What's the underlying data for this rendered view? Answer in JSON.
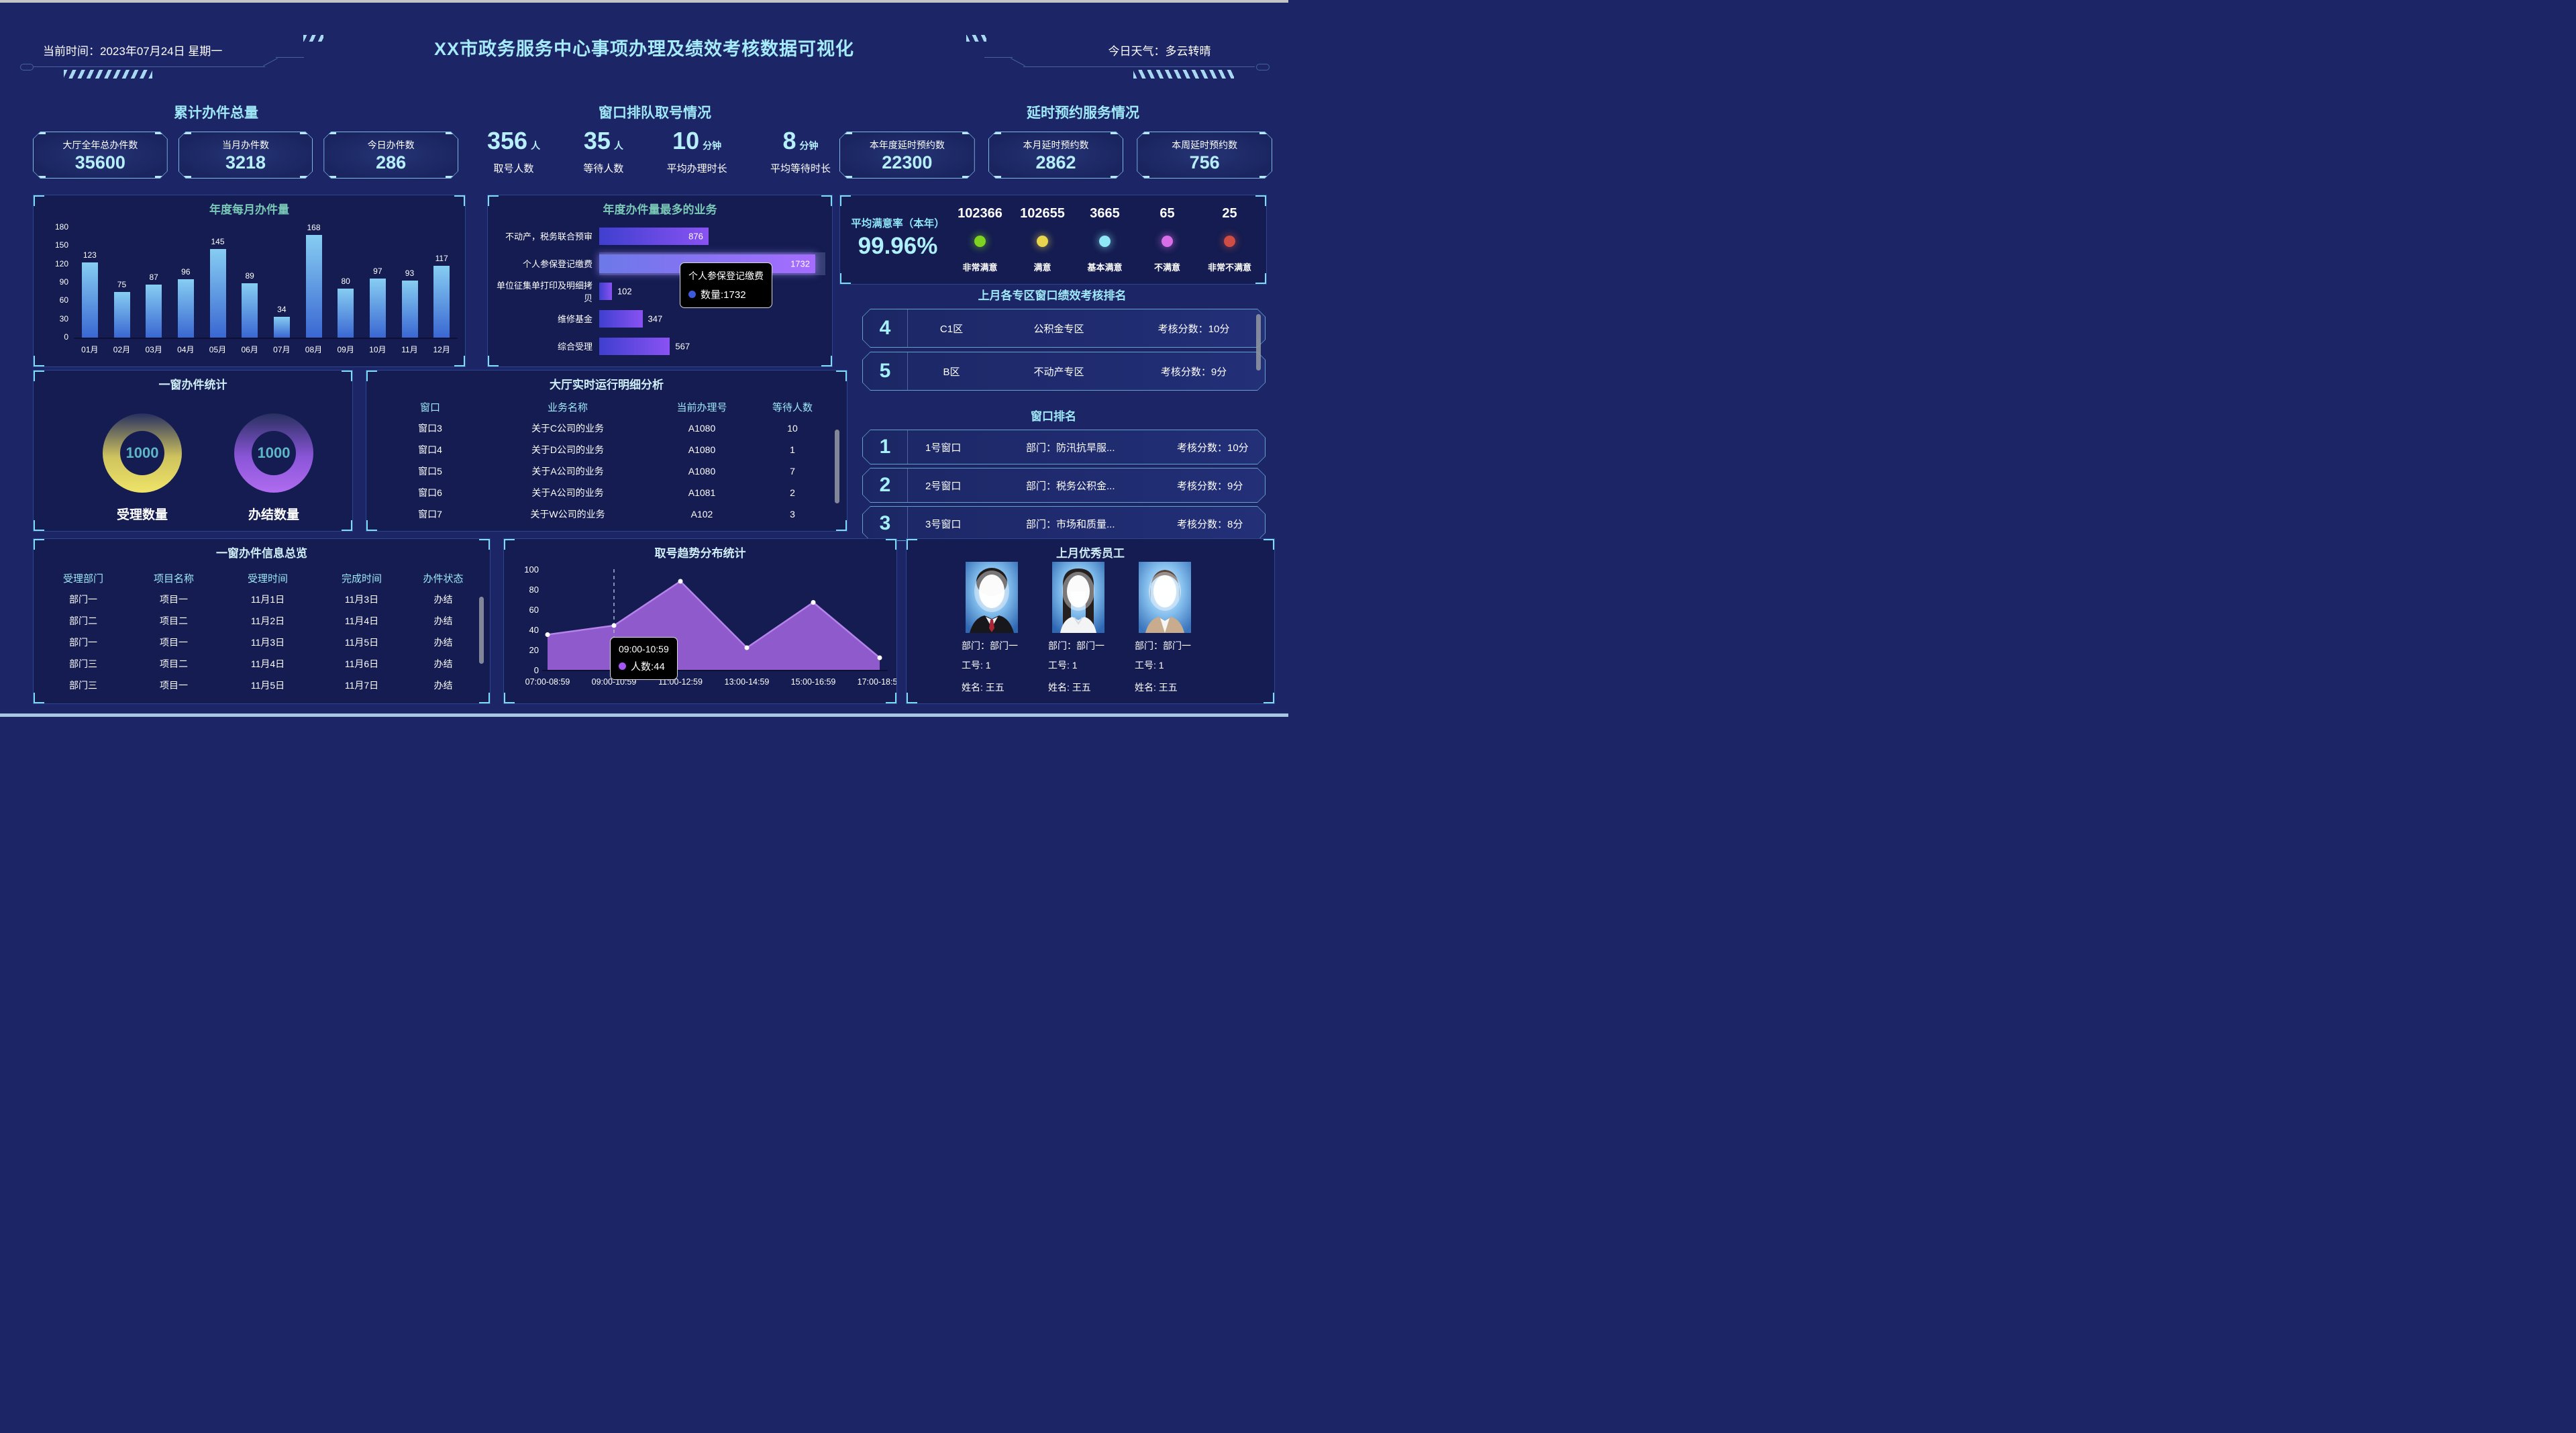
{
  "header": {
    "time": "当前时间：2023年07月24日 星期一",
    "title": "XX市政务服务中心事项办理及绩效考核数据可视化",
    "weather": "今日天气：多云转晴"
  },
  "cumulative": {
    "title": "累计办件总量",
    "cards": [
      {
        "label": "大厅全年总办件数",
        "value": "35600"
      },
      {
        "label": "当月办件数",
        "value": "3218"
      },
      {
        "label": "今日办件数",
        "value": "286"
      }
    ]
  },
  "queue": {
    "title": "窗口排队取号情况",
    "stats": [
      {
        "value": "356",
        "unit": "人",
        "label": "取号人数"
      },
      {
        "value": "35",
        "unit": "人",
        "label": "等待人数"
      },
      {
        "value": "10",
        "unit": "分钟",
        "label": "平均办理时长"
      },
      {
        "value": "8",
        "unit": "分钟",
        "label": "平均等待时长"
      }
    ]
  },
  "delay": {
    "title": "延时预约服务情况",
    "cards": [
      {
        "label": "本年度延时预约数",
        "value": "22300"
      },
      {
        "label": "本月延时预约数",
        "value": "2862"
      },
      {
        "label": "本周延时预约数",
        "value": "756"
      }
    ]
  },
  "satisfaction": {
    "rate_label": "平均满意率（本年）",
    "rate_value": "99.96%",
    "items": [
      {
        "count": "102366",
        "label": "非常满意",
        "color": "#7ed321"
      },
      {
        "count": "102655",
        "label": "满意",
        "color": "#e8d44d"
      },
      {
        "count": "3665",
        "label": "基本满意",
        "color": "#8ee8f5"
      },
      {
        "count": "65",
        "label": "不满意",
        "color": "#d96ee8"
      },
      {
        "count": "25",
        "label": "非常不满意",
        "color": "#cf4d44"
      }
    ]
  },
  "zone_rank": {
    "title": "上月各专区窗口绩效考核排名",
    "rows": [
      {
        "rank": "4",
        "zone": "C1区",
        "name": "公积金专区",
        "score": "考核分数：10分"
      },
      {
        "rank": "5",
        "zone": "B区",
        "name": "不动产专区",
        "score": "考核分数：9分"
      }
    ]
  },
  "window_rank": {
    "title": "窗口排名",
    "rows": [
      {
        "rank": "1",
        "window": "1号窗口",
        "dept": "部门：防汛抗旱服...",
        "score": "考核分数：10分"
      },
      {
        "rank": "2",
        "window": "2号窗口",
        "dept": "部门：税务公积金...",
        "score": "考核分数：9分"
      },
      {
        "rank": "3",
        "window": "3号窗口",
        "dept": "部门：市场和质量...",
        "score": "考核分数：8分"
      }
    ]
  },
  "employees": {
    "title": "上月优秀员工",
    "items": [
      {
        "dept": "部门：部门一",
        "id": "工号: 1",
        "name": "姓名: 王五"
      },
      {
        "dept": "部门：部门一",
        "id": "工号: 1",
        "name": "姓名: 王五"
      },
      {
        "dept": "部门：部门一",
        "id": "工号: 1",
        "name": "姓名: 王五"
      }
    ]
  },
  "chart_data": [
    {
      "id": "monthly",
      "type": "bar",
      "title": "年度每月办件量",
      "categories": [
        "01月",
        "02月",
        "03月",
        "04月",
        "05月",
        "06月",
        "07月",
        "08月",
        "09月",
        "10月",
        "11月",
        "12月"
      ],
      "values": [
        123,
        75,
        87,
        96,
        145,
        89,
        34,
        168,
        80,
        97,
        93,
        117
      ],
      "xlabel": "",
      "ylabel": "",
      "ylim": [
        0,
        180
      ],
      "yticks": [
        0,
        30,
        60,
        90,
        120,
        150,
        180
      ],
      "grid": false
    },
    {
      "id": "business",
      "type": "bar",
      "orientation": "horizontal",
      "title": "年度办件量最多的业务",
      "categories": [
        "不动产，税务联合预审",
        "个人参保登记缴费",
        "单位征集单打印及明细拷贝",
        "维修基金",
        "综合受理"
      ],
      "values": [
        876,
        1732,
        102,
        347,
        567
      ],
      "xlim": [
        0,
        1732
      ],
      "highlight_index": 1,
      "tooltip": {
        "title": "个人参保登记缴费",
        "text": "数量:1732"
      }
    },
    {
      "id": "one_window",
      "type": "pie",
      "title": "一窗办件统计",
      "series": [
        {
          "name": "受理数量",
          "value": 1000
        },
        {
          "name": "办结数量",
          "value": 1000
        }
      ]
    },
    {
      "id": "trend",
      "type": "area",
      "title": "取号趋势分布统计",
      "categories": [
        "07:00-08:59",
        "09:00-10:59",
        "11:00-12:59",
        "13:00-14:59",
        "15:00-16:59",
        "17:00-18:59"
      ],
      "values": [
        35,
        44,
        88,
        22,
        67,
        12
      ],
      "ylim": [
        0,
        100
      ],
      "yticks": [
        0,
        20,
        40,
        60,
        80,
        100
      ],
      "tooltip": {
        "title": "09:00-10:59",
        "text": "人数:44"
      }
    },
    {
      "id": "realtime",
      "type": "table",
      "title": "大厅实时运行明细分析",
      "headers": [
        "窗口",
        "业务名称",
        "当前办理号",
        "等待人数"
      ],
      "rows": [
        [
          "窗口3",
          "关于C公司的业务",
          "A1080",
          "10"
        ],
        [
          "窗口4",
          "关于D公司的业务",
          "A1080",
          "1"
        ],
        [
          "窗口5",
          "关于A公司的业务",
          "A1080",
          "7"
        ],
        [
          "窗口6",
          "关于A公司的业务",
          "A1081",
          "2"
        ],
        [
          "窗口7",
          "关于W公司的业务",
          "A102",
          "3"
        ]
      ]
    },
    {
      "id": "overview",
      "type": "table",
      "title": "一窗办件信息总览",
      "headers": [
        "受理部门",
        "项目名称",
        "受理时间",
        "完成时间",
        "办件状态"
      ],
      "rows": [
        [
          "部门一",
          "项目一",
          "11月1日",
          "11月3日",
          "办结"
        ],
        [
          "部门二",
          "项目二",
          "11月2日",
          "11月4日",
          "办结"
        ],
        [
          "部门一",
          "项目一",
          "11月3日",
          "11月5日",
          "办结"
        ],
        [
          "部门三",
          "项目二",
          "11月4日",
          "11月6日",
          "办结"
        ],
        [
          "部门三",
          "项目一",
          "11月5日",
          "11月7日",
          "办结"
        ]
      ]
    }
  ]
}
